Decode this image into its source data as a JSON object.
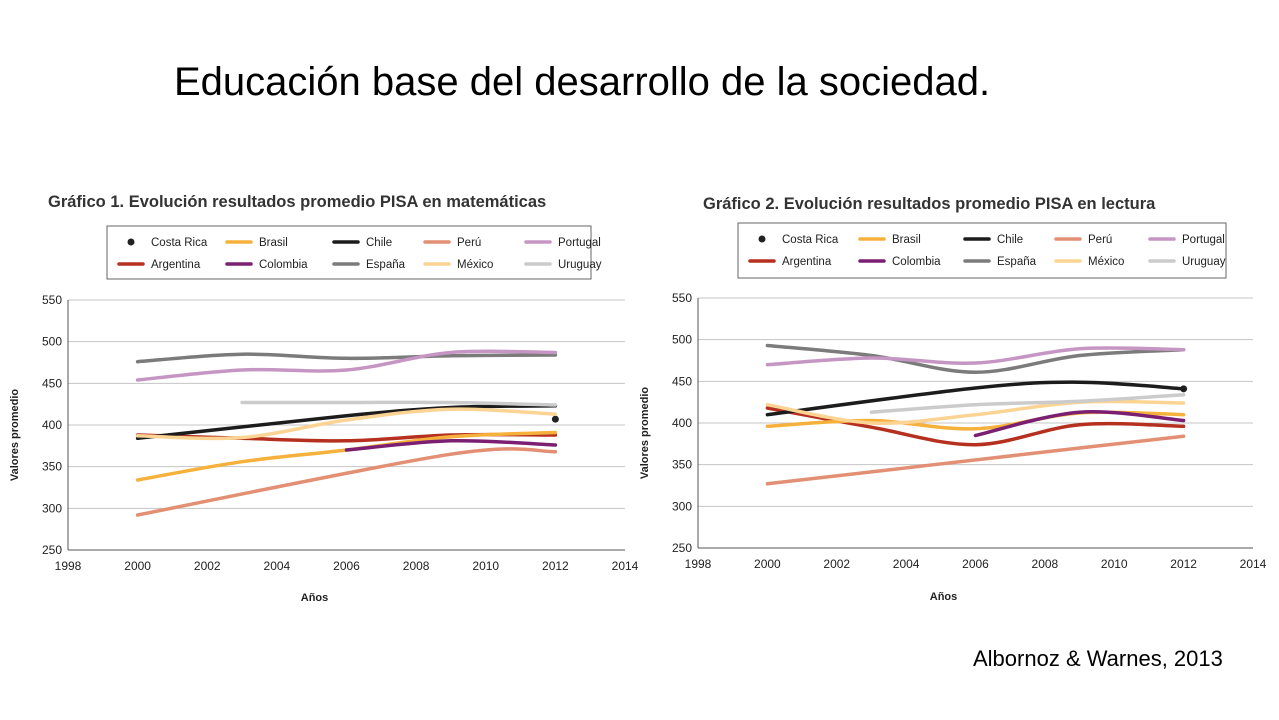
{
  "slide": {
    "title": "Educación base del desarrollo de la sociedad.",
    "citation": "Albornoz & Warnes, 2013"
  },
  "colors": {
    "Costa Rica": "#222222",
    "Argentina": "#b5301e",
    "Brasil": "#f6b13d",
    "Colombia": "#7a1f72",
    "Chile": "#1c1c1c",
    "España": "#7b7b7b",
    "Perú": "#e28f74",
    "México": "#fbd494",
    "Portugal": "#c596c3",
    "Uruguay": "#cbcbcb"
  },
  "chart_data": [
    {
      "type": "line",
      "title": "Gráfico 1. Evolución resultados promedio PISA en matemáticas",
      "xlabel": "Años",
      "ylabel": "Valores promedio",
      "xlim": [
        1998,
        2014
      ],
      "ylim": [
        250,
        550
      ],
      "x_ticks": [
        "1998",
        "2000",
        "2002",
        "2004",
        "2006",
        "2008",
        "2010",
        "2012",
        "2014"
      ],
      "y_ticks": [
        "250",
        "300",
        "350",
        "400",
        "450",
        "500",
        "550"
      ],
      "grid": true,
      "legend_position": "top",
      "series": [
        {
          "name": "Costa Rica",
          "x": [
            2012
          ],
          "y": [
            407
          ]
        },
        {
          "name": "Argentina",
          "x": [
            2000,
            2003,
            2006,
            2009,
            2012
          ],
          "y": [
            388,
            384,
            381,
            388,
            388
          ]
        },
        {
          "name": "Brasil",
          "x": [
            2000,
            2003,
            2006,
            2009,
            2012
          ],
          "y": [
            334,
            356,
            370,
            386,
            391
          ]
        },
        {
          "name": "Colombia",
          "x": [
            2006,
            2009,
            2012
          ],
          "y": [
            370,
            381,
            376
          ]
        },
        {
          "name": "Chile",
          "x": [
            2000,
            2006,
            2009,
            2012
          ],
          "y": [
            384,
            411,
            421,
            423
          ]
        },
        {
          "name": "España",
          "x": [
            2000,
            2003,
            2006,
            2009,
            2012
          ],
          "y": [
            476,
            485,
            480,
            483,
            484
          ]
        },
        {
          "name": "Perú",
          "x": [
            2000,
            2009,
            2012
          ],
          "y": [
            292,
            365,
            368
          ]
        },
        {
          "name": "México",
          "x": [
            2000,
            2003,
            2006,
            2009,
            2012
          ],
          "y": [
            387,
            385,
            406,
            419,
            413
          ]
        },
        {
          "name": "Portugal",
          "x": [
            2000,
            2003,
            2006,
            2009,
            2012
          ],
          "y": [
            454,
            466,
            466,
            487,
            487
          ]
        },
        {
          "name": "Uruguay",
          "x": [
            2003,
            2006,
            2009,
            2012
          ],
          "y": [
            427,
            427,
            427,
            424
          ]
        }
      ]
    },
    {
      "type": "line",
      "title": "Gráfico 2. Evolución resultados promedio PISA en lectura",
      "xlabel": "Años",
      "ylabel": "Valores promedio",
      "xlim": [
        1998,
        2014
      ],
      "ylim": [
        250,
        550
      ],
      "x_ticks": [
        "1998",
        "2000",
        "2002",
        "2004",
        "2006",
        "2008",
        "2010",
        "2012",
        "2014"
      ],
      "y_ticks": [
        "250",
        "300",
        "350",
        "400",
        "450",
        "500",
        "550"
      ],
      "grid": true,
      "legend_position": "top",
      "series": [
        {
          "name": "Costa Rica",
          "x": [
            2012
          ],
          "y": [
            441
          ]
        },
        {
          "name": "Argentina",
          "x": [
            2000,
            2003,
            2006,
            2009,
            2012
          ],
          "y": [
            418,
            395,
            374,
            398,
            396
          ]
        },
        {
          "name": "Brasil",
          "x": [
            2000,
            2003,
            2006,
            2009,
            2012
          ],
          "y": [
            396,
            403,
            393,
            412,
            410
          ]
        },
        {
          "name": "Colombia",
          "x": [
            2006,
            2009,
            2012
          ],
          "y": [
            385,
            413,
            403
          ]
        },
        {
          "name": "Chile",
          "x": [
            2000,
            2006,
            2009,
            2012
          ],
          "y": [
            410,
            442,
            449,
            441
          ]
        },
        {
          "name": "España",
          "x": [
            2000,
            2003,
            2006,
            2009,
            2012
          ],
          "y": [
            493,
            481,
            461,
            481,
            488
          ]
        },
        {
          "name": "Perú",
          "x": [
            2000,
            2009,
            2012
          ],
          "y": [
            327,
            370,
            384
          ]
        },
        {
          "name": "México",
          "x": [
            2000,
            2003,
            2006,
            2009,
            2012
          ],
          "y": [
            422,
            400,
            410,
            425,
            424
          ]
        },
        {
          "name": "Portugal",
          "x": [
            2000,
            2003,
            2006,
            2009,
            2012
          ],
          "y": [
            470,
            478,
            472,
            489,
            488
          ]
        },
        {
          "name": "Uruguay",
          "x": [
            2003,
            2006,
            2009,
            2012
          ],
          "y": [
            413,
            422,
            426,
            434
          ]
        }
      ]
    }
  ]
}
